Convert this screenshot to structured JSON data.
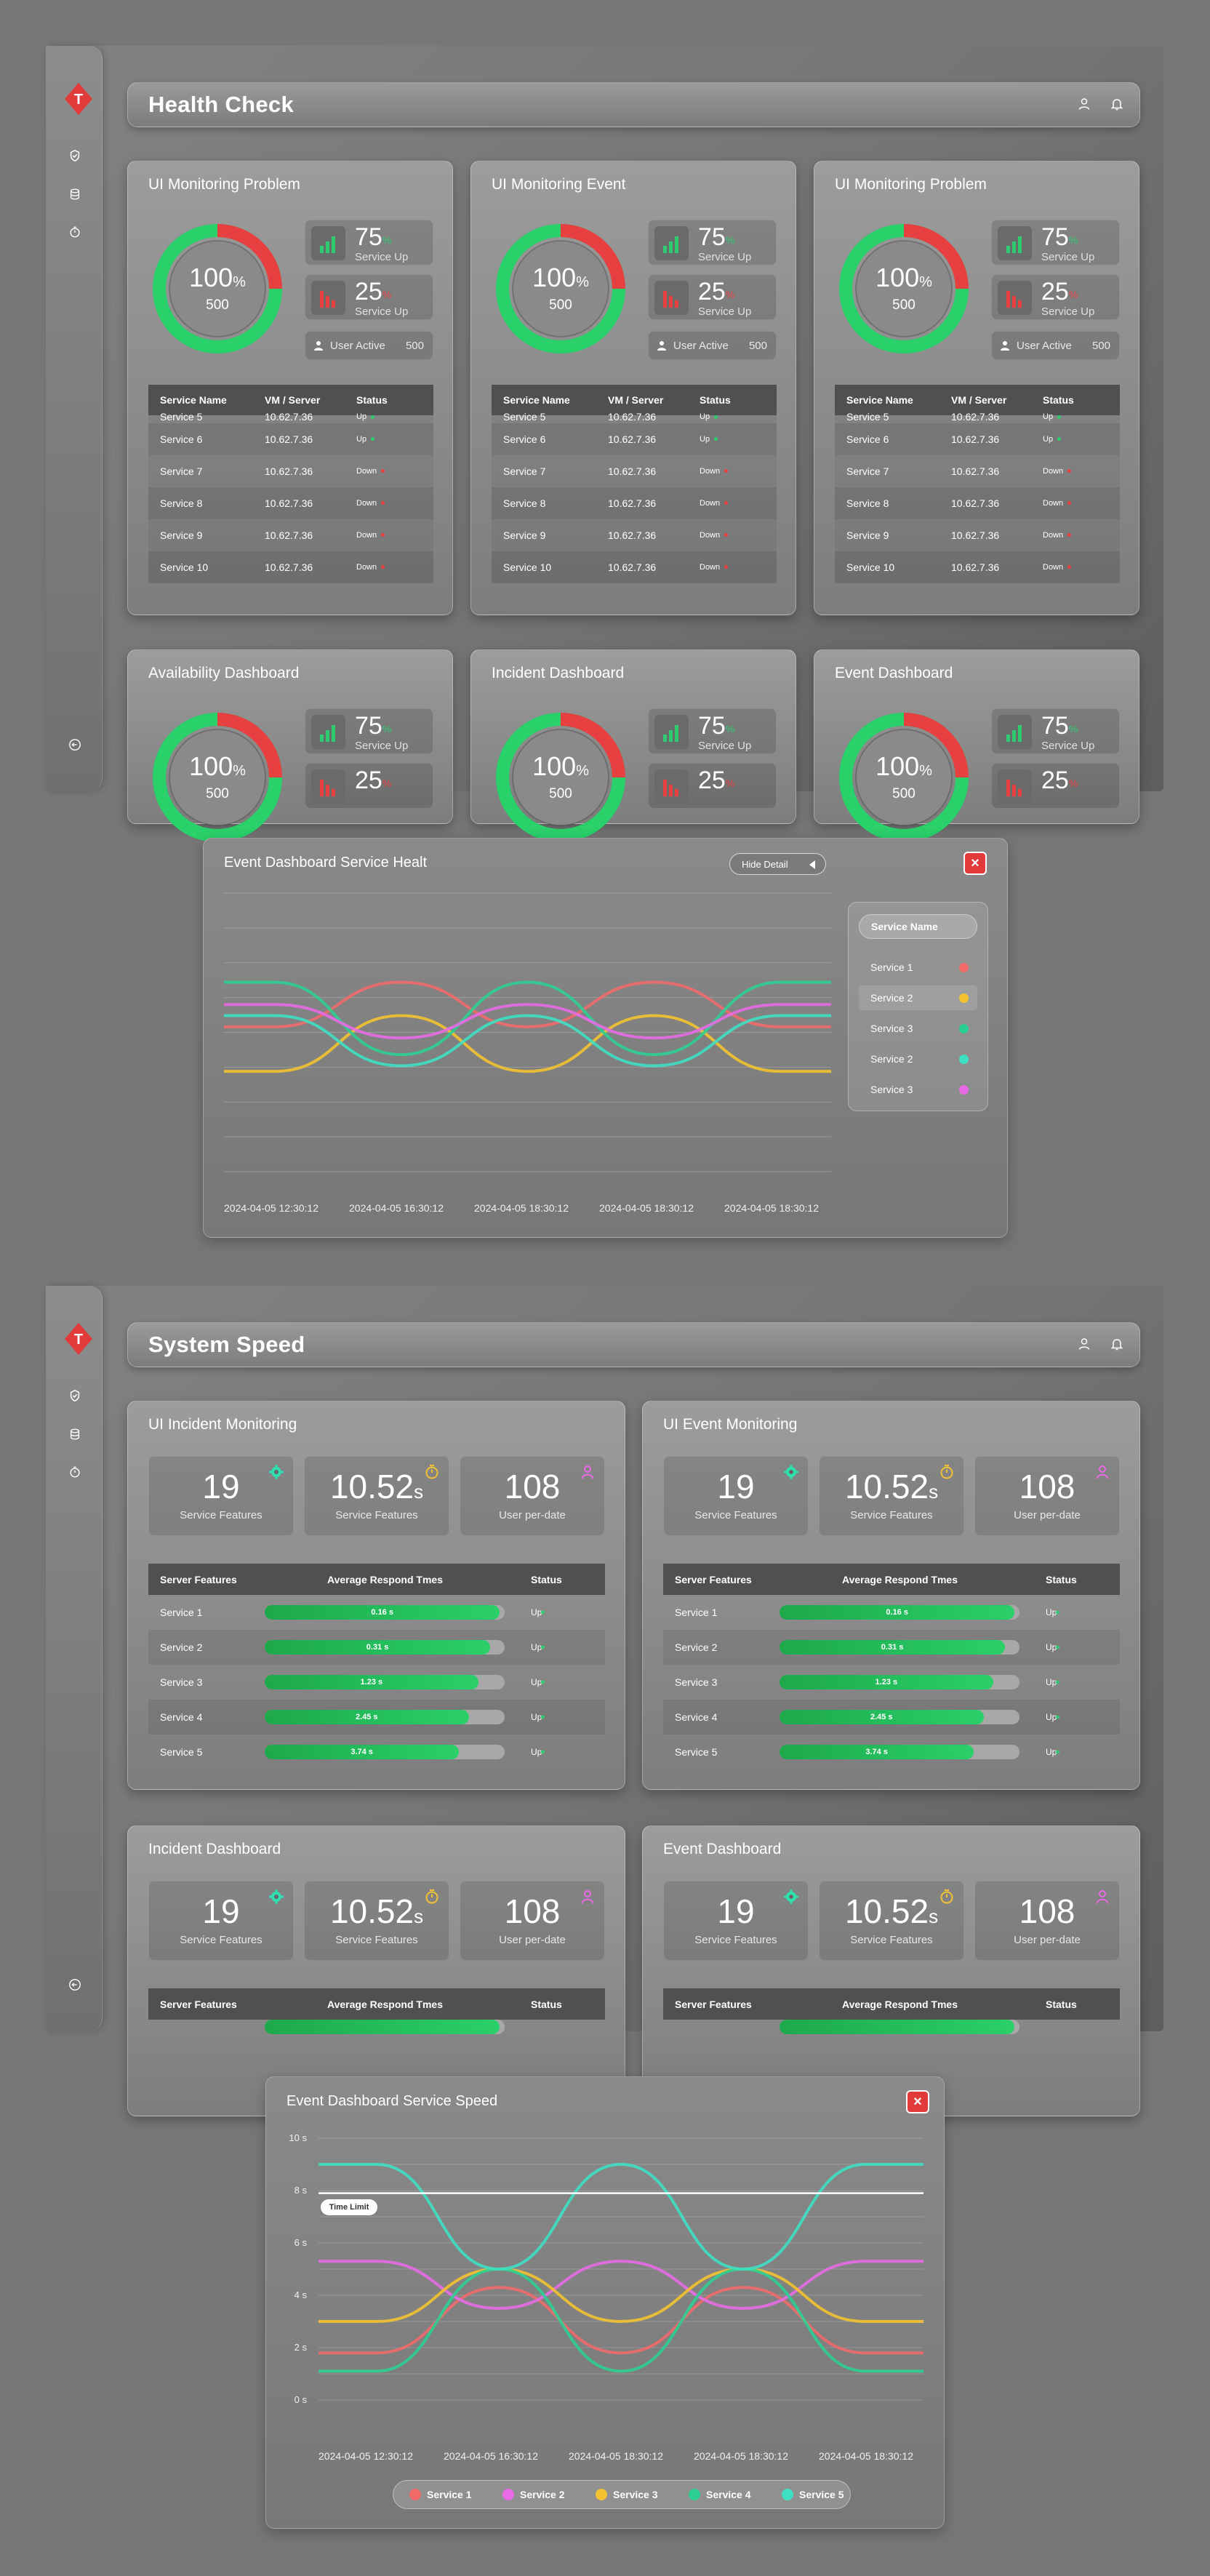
{
  "screen1": {
    "title": "Health Check",
    "cards": [
      {
        "title": "UI Monitoring Problem",
        "pct": "100",
        "pct_unit": "%",
        "total": "500",
        "up_value": "75",
        "up_unit": "%",
        "up_label": "Service Up",
        "down_value": "25",
        "down_unit": "%",
        "down_label": "Service Up",
        "active_label": "User Active",
        "active_value": "500",
        "donut_fraction": 0.75
      },
      {
        "title": "UI Monitoring Event",
        "pct": "100",
        "pct_unit": "%",
        "total": "500",
        "up_value": "75",
        "up_unit": "%",
        "up_label": "Service Up",
        "down_value": "25",
        "down_unit": "%",
        "down_label": "Service Up",
        "active_label": "User Active",
        "active_value": "500",
        "donut_fraction": 0.75
      },
      {
        "title": "UI Monitoring Problem",
        "pct": "100",
        "pct_unit": "%",
        "total": "500",
        "up_value": "75",
        "up_unit": "%",
        "up_label": "Service Up",
        "down_value": "25",
        "down_unit": "%",
        "down_label": "Service Up",
        "active_label": "User Active",
        "active_value": "500",
        "donut_fraction": 0.75
      },
      {
        "title": "Availability Dashboard",
        "pct": "100",
        "pct_unit": "%",
        "total": "500",
        "up_value": "75",
        "up_unit": "%",
        "up_label": "Service Up",
        "down_value": "25",
        "down_unit": "%",
        "donut_fraction": 0.75
      },
      {
        "title": "Incident Dashboard",
        "pct": "100",
        "pct_unit": "%",
        "total": "500",
        "up_value": "75",
        "up_unit": "%",
        "up_label": "Service Up",
        "down_value": "25",
        "down_unit": "%",
        "donut_fraction": 0.75
      },
      {
        "title": "Event Dashboard",
        "pct": "100",
        "pct_unit": "%",
        "total": "500",
        "up_value": "75",
        "up_unit": "%",
        "up_label": "Service Up",
        "down_value": "25",
        "down_unit": "%",
        "donut_fraction": 0.75
      }
    ],
    "table": {
      "headers": [
        "Service Name",
        "VM / Server",
        "Status"
      ],
      "rows": [
        [
          "Service 5",
          "10.62.7.36",
          "Up"
        ],
        [
          "Service 6",
          "10.62.7.36",
          "Up"
        ],
        [
          "Service 7",
          "10.62.7.36",
          "Down"
        ],
        [
          "Service 8",
          "10.62.7.36",
          "Down"
        ],
        [
          "Service 9",
          "10.62.7.36",
          "Down"
        ],
        [
          "Service 10",
          "10.62.7.36",
          "Down"
        ]
      ]
    }
  },
  "modal1": {
    "title": "Event Dashboard Service Healt",
    "hide_label": "Hide Detail",
    "close_icon": "×",
    "legend_header": "Service Name",
    "legend": [
      {
        "name": "Service 1",
        "color": "#f06a6a"
      },
      {
        "name": "Service 2",
        "color": "#f2c230"
      },
      {
        "name": "Service 3",
        "color": "#2ccf92"
      },
      {
        "name": "Service 2",
        "color": "#3ee0c4"
      },
      {
        "name": "Service 3",
        "color": "#e86ae6"
      }
    ],
    "x_labels": [
      "2024-04-05 12:30:12",
      "2024-04-05 16:30:12",
      "2024-04-05 18:30:12",
      "2024-04-05 18:30:12",
      "2024-04-05 18:30:12"
    ]
  },
  "screen2": {
    "title": "System Speed",
    "cards": [
      {
        "title": "UI Incident Monitoring"
      },
      {
        "title": "UI Event Monitoring"
      },
      {
        "title": "Incident Dashboard"
      },
      {
        "title": "Event Dashboard"
      }
    ],
    "stats": [
      {
        "value": "19",
        "unit": "",
        "label": "Service Features",
        "icon": "gear-icon",
        "color": "#2ee0b0"
      },
      {
        "value": "10.52",
        "unit": "s",
        "label": "Service Features",
        "icon": "timer-icon",
        "color": "#f2c230"
      },
      {
        "value": "108",
        "unit": "",
        "label": "User per-date",
        "icon": "user-icon",
        "color": "#e86ae6"
      }
    ],
    "table": {
      "headers": [
        "Server Features",
        "Average Respond Tmes",
        "Status"
      ],
      "rows": [
        {
          "name": "Service 1",
          "time": "0.16 s",
          "fraction": 0.98,
          "status": "Up"
        },
        {
          "name": "Service 2",
          "time": "0.31 s",
          "fraction": 0.94,
          "status": "Up"
        },
        {
          "name": "Service 3",
          "time": "1.23 s",
          "fraction": 0.89,
          "status": "Up"
        },
        {
          "name": "Service 4",
          "time": "2.45 s",
          "fraction": 0.85,
          "status": "Up"
        },
        {
          "name": "Service 5",
          "time": "3.74 s",
          "fraction": 0.81,
          "status": "Up"
        }
      ]
    }
  },
  "modal2": {
    "title": "Event Dashboard Service Speed",
    "close_icon": "×",
    "time_limit_label": "Time Limit",
    "legend": [
      {
        "name": "Service 1",
        "color": "#f06a6a"
      },
      {
        "name": "Service 2",
        "color": "#e86ae6"
      },
      {
        "name": "Service 3",
        "color": "#f2c230"
      },
      {
        "name": "Service 4",
        "color": "#2ccf92"
      },
      {
        "name": "Service 5",
        "color": "#3ee0c4"
      }
    ]
  },
  "chart_data": [
    {
      "type": "line",
      "title": "Event Dashboard Service Healt",
      "xlabel": "",
      "ylabel": "",
      "x": [
        "2024-04-05 12:30:12",
        "2024-04-05 16:30:12",
        "2024-04-05 18:30:12",
        "2024-04-05 18:30:12",
        "2024-04-05 18:30:12"
      ],
      "series": [
        {
          "name": "Service 1",
          "color": "#f06a6a",
          "values": [
            5.2,
            6.8,
            5.2,
            6.8,
            5.2
          ]
        },
        {
          "name": "Service 2",
          "color": "#f2c230",
          "values": [
            3.6,
            5.6,
            3.6,
            5.6,
            3.6
          ]
        },
        {
          "name": "Service 3",
          "color": "#2ccf92",
          "values": [
            6.8,
            4.2,
            6.8,
            4.2,
            6.8
          ]
        },
        {
          "name": "Service 2",
          "color": "#3ee0c4",
          "values": [
            5.6,
            3.8,
            5.6,
            3.8,
            5.6
          ]
        },
        {
          "name": "Service 3",
          "color": "#e86ae6",
          "values": [
            6.0,
            4.8,
            6.0,
            4.8,
            6.0
          ]
        }
      ],
      "ylim": [
        0,
        10
      ],
      "grid": true
    },
    {
      "type": "line",
      "title": "Event Dashboard Service Speed",
      "xlabel": "",
      "ylabel": "",
      "x": [
        "2024-04-05 12:30:12",
        "2024-04-05 16:30:12",
        "2024-04-05 18:30:12",
        "2024-04-05 18:30:12",
        "2024-04-05 18:30:12"
      ],
      "y_ticks": [
        "0 s",
        "2 s",
        "4 s",
        "6 s",
        "8 s",
        "10 s"
      ],
      "time_limit": 7.9,
      "series": [
        {
          "name": "Service 1",
          "color": "#f06a6a",
          "values": [
            1.8,
            4.3,
            1.8,
            4.3,
            1.8
          ]
        },
        {
          "name": "Service 2",
          "color": "#e86ae6",
          "values": [
            5.3,
            3.5,
            5.3,
            3.5,
            5.3
          ]
        },
        {
          "name": "Service 3",
          "color": "#f2c230",
          "values": [
            3.0,
            5.0,
            3.0,
            5.0,
            3.0
          ]
        },
        {
          "name": "Service 4",
          "color": "#2ccf92",
          "values": [
            1.1,
            5.0,
            1.1,
            5.0,
            1.1
          ]
        },
        {
          "name": "Service 5",
          "color": "#3ee0c4",
          "values": [
            9.0,
            5.0,
            9.0,
            5.0,
            9.0
          ]
        }
      ],
      "ylim": [
        0,
        10
      ],
      "grid": true,
      "legend": "bottom"
    }
  ]
}
